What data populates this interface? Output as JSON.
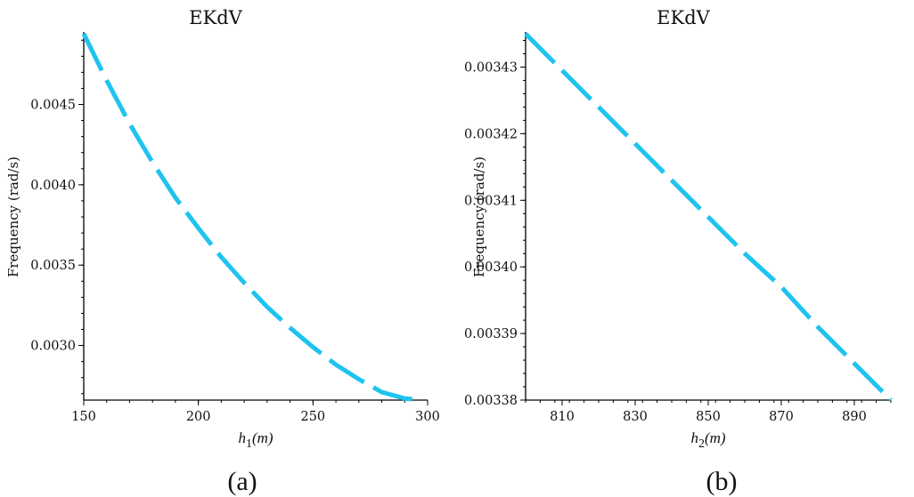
{
  "chart_data": [
    {
      "type": "line",
      "panel_label": "(a)",
      "title": "EKdV",
      "xlabel": {
        "var": "h",
        "sub": "1",
        "unit": "(m)"
      },
      "ylabel": "Frequency (rad/s)",
      "xlim": [
        150,
        300
      ],
      "ylim": [
        0.00266,
        0.00494
      ],
      "xticks": [
        150,
        200,
        250,
        300
      ],
      "xtick_labels": [
        "150",
        "200",
        "250",
        "300"
      ],
      "yticks": [
        0.003,
        0.0035,
        0.004,
        0.0045
      ],
      "ytick_labels": [
        "0.0030",
        "0.0035",
        "0.0040",
        "0.0045"
      ],
      "line_style": "dashed",
      "color": "#1ec3f0",
      "series": [
        {
          "x": [
            150,
            160,
            170,
            180,
            190,
            200,
            210,
            220,
            230,
            240,
            250,
            260,
            270,
            280,
            290,
            297
          ],
          "y": [
            0.00494,
            0.00465,
            0.00438,
            0.00414,
            0.00392,
            0.00373,
            0.00355,
            0.00339,
            0.00324,
            0.00311,
            0.00299,
            0.00288,
            0.00279,
            0.00271,
            0.00267,
            0.00266
          ]
        }
      ]
    },
    {
      "type": "line",
      "panel_label": "(b)",
      "title": "EKdV",
      "xlabel": {
        "var": "h",
        "sub": "2",
        "unit": "(m)"
      },
      "ylabel": "Frequency (rad/s)",
      "xlim": [
        800,
        900
      ],
      "ylim": [
        0.00338,
        0.003435
      ],
      "xticks": [
        810,
        830,
        850,
        870,
        890
      ],
      "xtick_labels": [
        "810",
        "830",
        "850",
        "870",
        "890"
      ],
      "yticks": [
        0.00338,
        0.00339,
        0.0034,
        0.00341,
        0.00342,
        0.00343
      ],
      "ytick_labels": [
        "0.00338",
        "0.00339",
        "0.00340",
        "0.00341",
        "0.00342",
        "0.00343"
      ],
      "line_style": "dashed",
      "color": "#1ec3f0",
      "series": [
        {
          "x": [
            800,
            810,
            820,
            830,
            840,
            850,
            860,
            870,
            880,
            890,
            900
          ],
          "y": [
            0.003435,
            0.0034295,
            0.003424,
            0.0034185,
            0.003413,
            0.0034075,
            0.003402,
            0.003397,
            0.003391,
            0.0033855,
            0.00338
          ]
        }
      ]
    }
  ]
}
